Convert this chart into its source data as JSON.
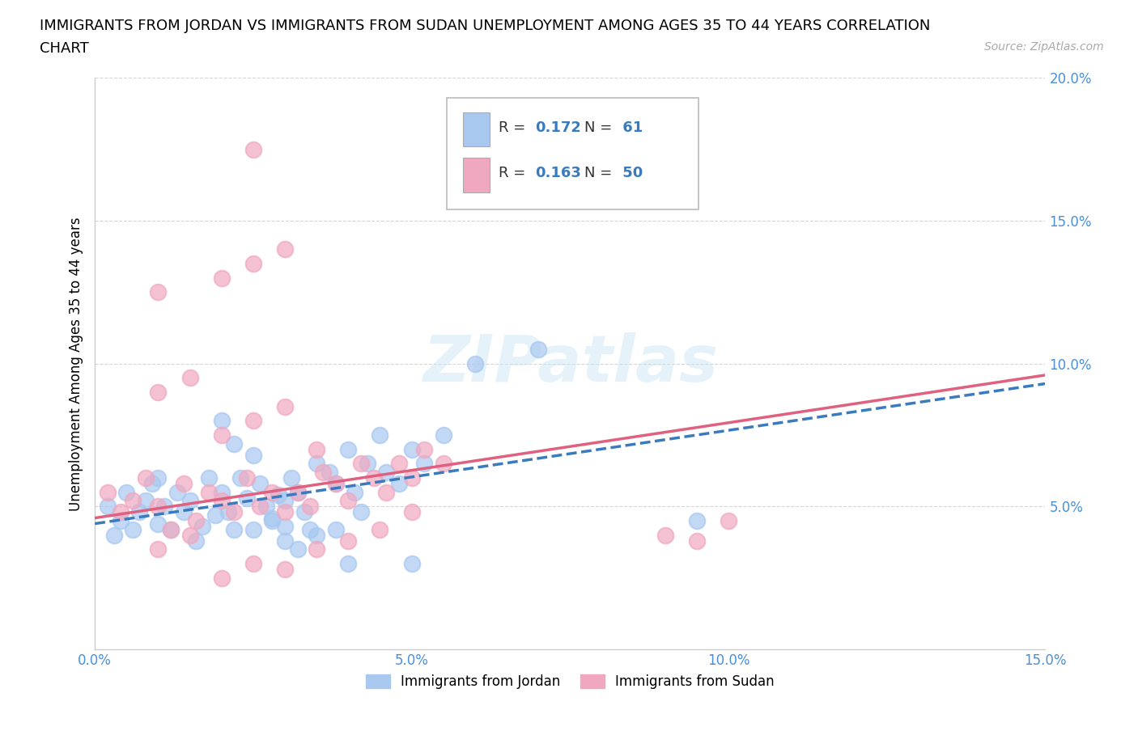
{
  "title_line1": "IMMIGRANTS FROM JORDAN VS IMMIGRANTS FROM SUDAN UNEMPLOYMENT AMONG AGES 35 TO 44 YEARS CORRELATION",
  "title_line2": "CHART",
  "source_text": "Source: ZipAtlas.com",
  "ylabel": "Unemployment Among Ages 35 to 44 years",
  "jordan_color": "#a8c8f0",
  "sudan_color": "#f0a8c0",
  "jordan_R": 0.172,
  "jordan_N": 61,
  "sudan_R": 0.163,
  "sudan_N": 50,
  "xlim": [
    0.0,
    0.15
  ],
  "ylim": [
    0.0,
    0.2
  ],
  "xticks": [
    0.0,
    0.05,
    0.1,
    0.15
  ],
  "yticks": [
    0.05,
    0.1,
    0.15,
    0.2
  ],
  "xtick_labels": [
    "0.0%",
    "5.0%",
    "10.0%",
    "15.0%"
  ],
  "ytick_labels": [
    "5.0%",
    "10.0%",
    "15.0%",
    "20.0%"
  ],
  "legend_label_jordan": "Immigrants from Jordan",
  "legend_label_sudan": "Immigrants from Sudan",
  "watermark_text": "ZIPatlas",
  "jordan_line_x": [
    0.0,
    0.15
  ],
  "jordan_line_y": [
    0.044,
    0.093
  ],
  "sudan_line_x": [
    0.0,
    0.15
  ],
  "sudan_line_y": [
    0.046,
    0.096
  ],
  "title_fontsize": 13,
  "axis_label_fontsize": 12,
  "tick_fontsize": 12,
  "legend_fontsize": 12,
  "jordan_scatter_x": [
    0.002,
    0.003,
    0.004,
    0.005,
    0.006,
    0.007,
    0.008,
    0.009,
    0.01,
    0.01,
    0.011,
    0.012,
    0.013,
    0.014,
    0.015,
    0.016,
    0.017,
    0.018,
    0.019,
    0.02,
    0.021,
    0.022,
    0.023,
    0.024,
    0.025,
    0.026,
    0.027,
    0.028,
    0.029,
    0.03,
    0.03,
    0.031,
    0.032,
    0.033,
    0.034,
    0.035,
    0.037,
    0.038,
    0.04,
    0.041,
    0.042,
    0.043,
    0.045,
    0.046,
    0.048,
    0.05,
    0.052,
    0.055,
    0.02,
    0.022,
    0.025,
    0.028,
    0.03,
    0.032,
    0.035,
    0.038,
    0.04,
    0.05,
    0.06,
    0.07,
    0.095
  ],
  "jordan_scatter_y": [
    0.05,
    0.04,
    0.045,
    0.055,
    0.042,
    0.048,
    0.052,
    0.058,
    0.044,
    0.06,
    0.05,
    0.042,
    0.055,
    0.048,
    0.052,
    0.038,
    0.043,
    0.06,
    0.047,
    0.055,
    0.048,
    0.042,
    0.06,
    0.053,
    0.042,
    0.058,
    0.05,
    0.046,
    0.054,
    0.052,
    0.043,
    0.06,
    0.055,
    0.048,
    0.042,
    0.065,
    0.062,
    0.058,
    0.07,
    0.055,
    0.048,
    0.065,
    0.075,
    0.062,
    0.058,
    0.07,
    0.065,
    0.075,
    0.08,
    0.072,
    0.068,
    0.045,
    0.038,
    0.035,
    0.04,
    0.042,
    0.03,
    0.03,
    0.1,
    0.105,
    0.045
  ],
  "sudan_scatter_x": [
    0.002,
    0.004,
    0.006,
    0.008,
    0.01,
    0.012,
    0.014,
    0.016,
    0.018,
    0.02,
    0.022,
    0.024,
    0.026,
    0.028,
    0.03,
    0.032,
    0.034,
    0.036,
    0.038,
    0.04,
    0.042,
    0.044,
    0.046,
    0.048,
    0.05,
    0.052,
    0.055,
    0.01,
    0.015,
    0.02,
    0.025,
    0.03,
    0.035,
    0.04,
    0.045,
    0.05,
    0.01,
    0.015,
    0.02,
    0.025,
    0.03,
    0.035,
    0.01,
    0.02,
    0.025,
    0.03,
    0.09,
    0.095,
    0.1,
    0.025
  ],
  "sudan_scatter_y": [
    0.055,
    0.048,
    0.052,
    0.06,
    0.05,
    0.042,
    0.058,
    0.045,
    0.055,
    0.052,
    0.048,
    0.06,
    0.05,
    0.055,
    0.048,
    0.055,
    0.05,
    0.062,
    0.058,
    0.052,
    0.065,
    0.06,
    0.055,
    0.065,
    0.06,
    0.07,
    0.065,
    0.09,
    0.095,
    0.075,
    0.08,
    0.085,
    0.07,
    0.038,
    0.042,
    0.048,
    0.035,
    0.04,
    0.025,
    0.03,
    0.028,
    0.035,
    0.125,
    0.13,
    0.135,
    0.14,
    0.04,
    0.038,
    0.045,
    0.175
  ]
}
